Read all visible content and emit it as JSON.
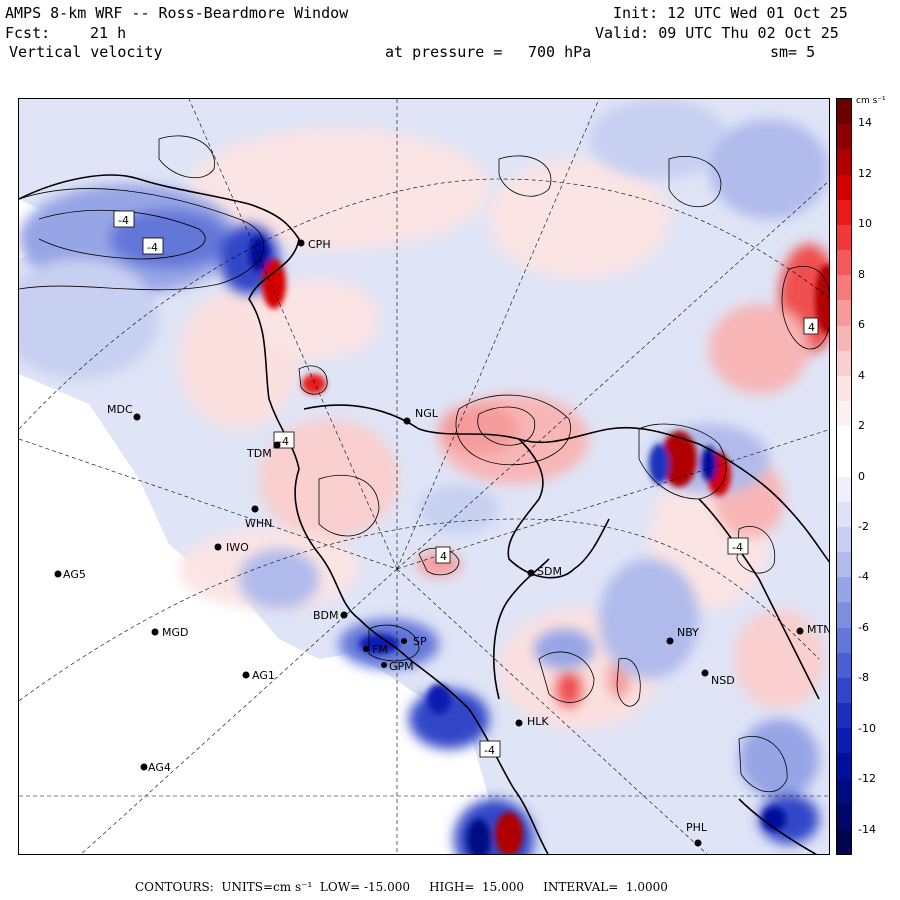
{
  "header": {
    "title": "AMPS 8-km WRF -- Ross-Beardmore Window",
    "fcst_label": "Fcst:",
    "fcst_value": "21 h",
    "field": "Vertical velocity",
    "init": "Init: 12 UTC Wed 01 Oct 25",
    "valid": "Valid: 09 UTC Thu 02 Oct 25",
    "pressure_label": "at pressure =",
    "pressure_value": "700 hPa",
    "smooth": "sm= 5"
  },
  "colorbar": {
    "units_label": "cm s⁻¹",
    "ticks": [
      "14",
      "12",
      "10",
      "8",
      "6",
      "4",
      "2",
      "0",
      "-2",
      "-4",
      "-6",
      "-8",
      "-10",
      "-12",
      "-14"
    ],
    "colors": [
      "#6b0000",
      "#8c0000",
      "#b00000",
      "#d40000",
      "#e81a1a",
      "#f03a3a",
      "#f55a5a",
      "#f77b7b",
      "#f89a9a",
      "#f8b6b6",
      "#f9cfcf",
      "#fbe4e4",
      "#fdf2f2",
      "#ffffff",
      "#ffffff",
      "#eef0fb",
      "#dde2f7",
      "#c8d0f2",
      "#b0bbec",
      "#97a5e6",
      "#7d8ee0",
      "#6377d9",
      "#4a5fd2",
      "#3147c8",
      "#1a30bd",
      "#0a1db0",
      "#00109c",
      "#000b82",
      "#000768",
      "#000550"
    ]
  },
  "stations": [
    {
      "id": "CPH",
      "label": "CPH"
    },
    {
      "id": "MDC",
      "label": "MDC"
    },
    {
      "id": "NGL",
      "label": "NGL"
    },
    {
      "id": "TDM",
      "label": "TDM"
    },
    {
      "id": "WHN",
      "label": "WHN"
    },
    {
      "id": "IWO",
      "label": "IWO"
    },
    {
      "id": "AG5",
      "label": "AG5"
    },
    {
      "id": "SDM",
      "label": "SDM"
    },
    {
      "id": "BDM",
      "label": "BDM"
    },
    {
      "id": "MGD",
      "label": "MGD"
    },
    {
      "id": "AG1",
      "label": "AG1"
    },
    {
      "id": "SP",
      "label": "SP"
    },
    {
      "id": "FM",
      "label": "FM"
    },
    {
      "id": "GPM",
      "label": "GPM"
    },
    {
      "id": "NBY",
      "label": "NBY"
    },
    {
      "id": "MTN",
      "label": "MTN"
    },
    {
      "id": "NSD",
      "label": "NSD"
    },
    {
      "id": "HLK",
      "label": "HLK"
    },
    {
      "id": "AG4",
      "label": "AG4"
    },
    {
      "id": "PHL",
      "label": "PHL"
    }
  ],
  "contour_labels": [
    "-4",
    "-4",
    "4",
    "-4",
    "4",
    "-4",
    "-4"
  ],
  "footer": {
    "contours_label": "CONTOURS:",
    "units_label": "UNITS=cm s⁻¹",
    "low_label": "LOW=",
    "low_value": "-15.000",
    "high_label": "HIGH=",
    "high_value": "15.000",
    "interval_label": "INTERVAL=",
    "interval_value": "1.0000"
  }
}
